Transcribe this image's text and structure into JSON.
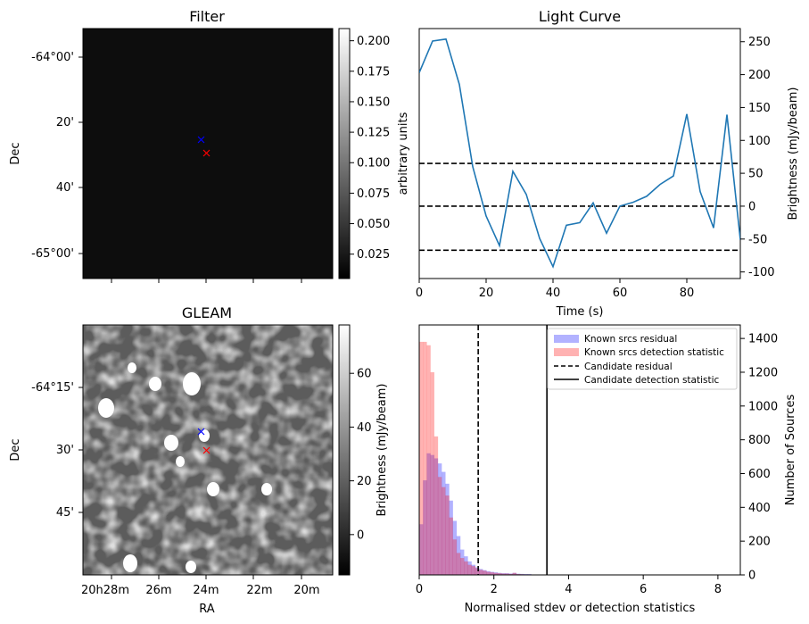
{
  "chart_data": [
    {
      "type": "heatmap",
      "title": "Filter",
      "ylabel": "Dec",
      "y_ticks": [
        "-64°00'",
        "20'",
        "40'",
        "-65°00'"
      ],
      "colorbar": {
        "label": "arbitrary units",
        "range": [
          0.005,
          0.21
        ],
        "ticks": [
          "0.025",
          "0.050",
          "0.075",
          "0.100",
          "0.125",
          "0.150",
          "0.175",
          "0.200"
        ],
        "colormap": "gray"
      },
      "markers": [
        {
          "symbol": "x",
          "color": "#0000ff"
        },
        {
          "symbol": "x",
          "color": "#ff0000"
        }
      ]
    },
    {
      "type": "line",
      "title": "Light Curve",
      "xlabel": "Time (s)",
      "ylabel": "Brightness (mJy/beam)",
      "xlim": [
        0,
        96
      ],
      "ylim": [
        -110,
        270
      ],
      "x_ticks": [
        "0",
        "20",
        "40",
        "60",
        "80"
      ],
      "y_ticks": [
        "-100",
        "-50",
        "0",
        "50",
        "100",
        "150",
        "200",
        "250"
      ],
      "x": [
        0,
        4,
        8,
        12,
        16,
        20,
        24,
        28,
        32,
        36,
        40,
        44,
        48,
        52,
        56,
        60,
        64,
        68,
        72,
        76,
        80,
        84,
        88,
        92,
        96
      ],
      "series": [
        {
          "color": "#1f77b4",
          "values": [
            203,
            251,
            254,
            185,
            60,
            -15,
            -60,
            53,
            18,
            -49,
            -92,
            -29,
            -25,
            5,
            -41,
            0,
            6,
            15,
            33,
            46,
            140,
            22,
            -33,
            139,
            -51
          ]
        }
      ],
      "hlines": [
        {
          "y": 65,
          "style": "dashed"
        },
        {
          "y": 0,
          "style": "dashed"
        },
        {
          "y": -67,
          "style": "dashed"
        }
      ]
    },
    {
      "type": "heatmap",
      "title": "GLEAM",
      "xlabel": "RA",
      "ylabel": "Dec",
      "x_ticks": [
        "20h28m",
        "26m",
        "24m",
        "22m",
        "20m"
      ],
      "y_ticks": [
        "-64°15'",
        "30'",
        "45'"
      ],
      "colorbar": {
        "label": "Brightness (mJy/beam)",
        "range": [
          -15,
          78
        ],
        "ticks": [
          "0",
          "20",
          "40",
          "60"
        ],
        "colormap": "gray"
      },
      "markers": [
        {
          "symbol": "x",
          "color": "#0000ff"
        },
        {
          "symbol": "x",
          "color": "#ff0000"
        }
      ]
    },
    {
      "type": "bar",
      "xlabel": "Normalised stdev or detection statistics",
      "ylabel": "Number of Sources",
      "xlim": [
        0,
        8.6
      ],
      "ylim": [
        0,
        1480
      ],
      "x_ticks": [
        "0",
        "2",
        "4",
        "6",
        "8"
      ],
      "y_ticks": [
        "0",
        "200",
        "400",
        "600",
        "800",
        "1000",
        "1200",
        "1400"
      ],
      "legend_position": "top-right",
      "bin_width": 0.1,
      "series": [
        {
          "name": "Known srcs residual",
          "color": "#0000ff",
          "values": [
            300,
            560,
            720,
            710,
            690,
            660,
            610,
            540,
            440,
            320,
            230,
            150,
            110,
            80,
            60,
            45,
            35,
            28,
            22,
            18,
            15,
            12,
            10,
            10,
            8,
            12,
            7,
            6,
            5,
            5
          ]
        },
        {
          "name": "Known srcs detection statistic",
          "color": "#ff0000",
          "values": [
            1380,
            1380,
            1360,
            1200,
            820,
            580,
            520,
            470,
            340,
            210,
            130,
            100,
            80,
            60,
            52,
            40,
            30,
            25,
            18,
            15,
            12,
            10,
            8,
            8,
            6,
            12,
            5,
            4,
            3,
            3
          ]
        }
      ],
      "vlines": [
        {
          "name": "Candidate residual",
          "x": 1.58,
          "style": "dashed"
        },
        {
          "name": "Candidate detection statistic",
          "x": 3.42,
          "style": "solid"
        }
      ]
    }
  ]
}
